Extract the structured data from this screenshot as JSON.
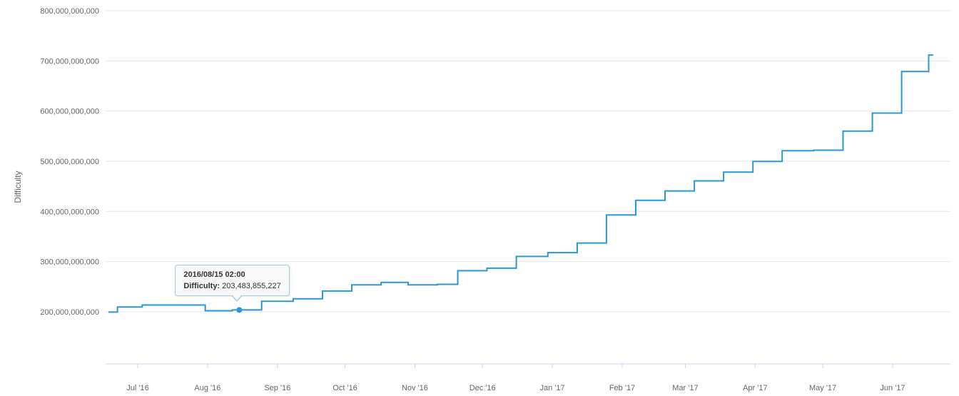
{
  "colors": {
    "grid": "#e6e6e6",
    "axis_line": "#ccd6eb",
    "tick_text": "#666666",
    "line": "#2b98d5",
    "tooltip_bg": "#f8f8f8",
    "tooltip_border": "#a9c9dd"
  },
  "chart_data": {
    "type": "line",
    "step": "after",
    "title": "",
    "xlabel": "",
    "ylabel": "Difficulty",
    "grid": "horizontal-only",
    "legend": "none",
    "line_color": "#2b98d5",
    "x_tick_labels": [
      "Jul '16",
      "Aug '16",
      "Sep '16",
      "Oct '16",
      "Nov '16",
      "Dec '16",
      "Jan '17",
      "Feb '17",
      "Mar '17",
      "Apr '17",
      "May '17",
      "Jun '17"
    ],
    "x_tick_dates": [
      "2016-07-01",
      "2016-08-01",
      "2016-09-01",
      "2016-10-01",
      "2016-11-01",
      "2016-12-01",
      "2017-01-01",
      "2017-02-01",
      "2017-03-01",
      "2017-04-01",
      "2017-05-01",
      "2017-06-01"
    ],
    "y_tick_labels": [
      "200,000,000,000",
      "300,000,000,000",
      "400,000,000,000",
      "500,000,000,000",
      "600,000,000,000",
      "700,000,000,000",
      "800,000,000,000"
    ],
    "y_tick_values": [
      200000000000,
      300000000000,
      400000000000,
      500000000000,
      600000000000,
      700000000000,
      800000000000
    ],
    "ylim": [
      96000000000,
      800000000000
    ],
    "xlim": [
      "2016-06-18",
      "2017-06-19"
    ],
    "series": [
      {
        "name": "Difficulty",
        "points": [
          [
            "2016-06-18",
            199312067531
          ],
          [
            "2016-06-22",
            209453158595
          ],
          [
            "2016-07-03",
            213398925331
          ],
          [
            "2016-07-31",
            201893210971
          ],
          [
            "2016-08-12",
            203483855227
          ],
          [
            "2016-08-25",
            220755908330
          ],
          [
            "2016-09-08",
            225832872179
          ],
          [
            "2016-09-21",
            241227200230
          ],
          [
            "2016-10-04",
            253618246641
          ],
          [
            "2016-10-17",
            258522748404
          ],
          [
            "2016-10-29",
            253447946832
          ],
          [
            "2016-11-11",
            254620187304
          ],
          [
            "2016-11-20",
            281800917193
          ],
          [
            "2016-12-03",
            286765766820
          ],
          [
            "2016-12-16",
            310153855703
          ],
          [
            "2016-12-30",
            317688400354
          ],
          [
            "2017-01-12",
            336899932796
          ],
          [
            "2017-01-25",
            392963262344
          ],
          [
            "2017-02-07",
            422170566883
          ],
          [
            "2017-02-20",
            440779902286
          ],
          [
            "2017-03-05",
            460769358090
          ],
          [
            "2017-03-18",
            478100000000
          ],
          [
            "2017-03-31",
            499635929817
          ],
          [
            "2017-04-13",
            520808749422
          ],
          [
            "2017-04-27",
            522000000000
          ],
          [
            "2017-05-10",
            559970892890
          ],
          [
            "2017-05-23",
            595921917085
          ],
          [
            "2017-06-05",
            678760110082
          ],
          [
            "2017-06-17",
            711697198174
          ]
        ]
      }
    ],
    "tooltip": {
      "date_label": "2016/08/15 02:00",
      "series_label": "Difficulty:",
      "value_text": "203,483,855,227",
      "anchor_date": "2016-08-15T02:00",
      "anchor_value": 203483855227
    }
  }
}
